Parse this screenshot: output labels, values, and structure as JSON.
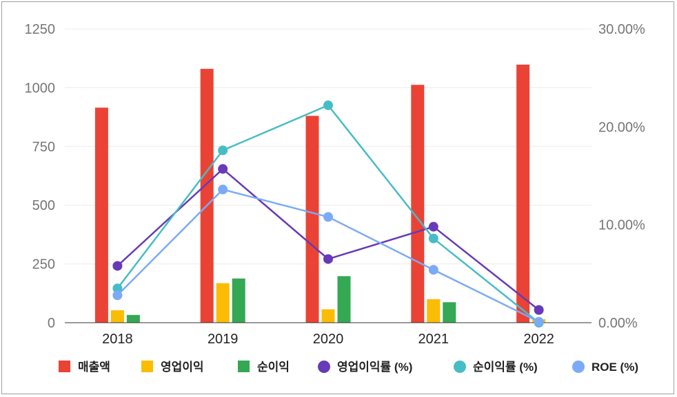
{
  "chart_data": {
    "type": "bar+line",
    "categories": [
      "2018",
      "2019",
      "2020",
      "2021",
      "2022"
    ],
    "bar_series": [
      {
        "name": "매출액",
        "color": "#ea4335",
        "values": [
          915,
          1080,
          880,
          1012,
          1098
        ]
      },
      {
        "name": "영업이익",
        "color": "#fbbc04",
        "values": [
          53,
          168,
          57,
          100,
          15
        ]
      },
      {
        "name": "순이익",
        "color": "#34a853",
        "values": [
          33,
          188,
          198,
          87,
          0
        ]
      }
    ],
    "line_series": [
      {
        "name": "영업이익률 (%)",
        "color": "#673ab7",
        "values": [
          5.8,
          15.7,
          6.5,
          9.8,
          1.3
        ]
      },
      {
        "name": "순이익률 (%)",
        "color": "#46bdc6",
        "values": [
          3.5,
          17.6,
          22.2,
          8.6,
          0.0
        ]
      },
      {
        "name": "ROE (%)",
        "color": "#7baaf7",
        "values": [
          2.8,
          13.6,
          10.8,
          5.4,
          0.1
        ]
      }
    ],
    "y_left": {
      "ticks": [
        "0",
        "250",
        "500",
        "750",
        "1000",
        "1250"
      ],
      "ylim": [
        0,
        1250
      ]
    },
    "y_right": {
      "ticks": [
        "0.00%",
        "10.00%",
        "20.00%",
        "30.00%"
      ],
      "ylim": [
        0,
        30
      ]
    },
    "grid": true,
    "legend_position": "bottom"
  }
}
